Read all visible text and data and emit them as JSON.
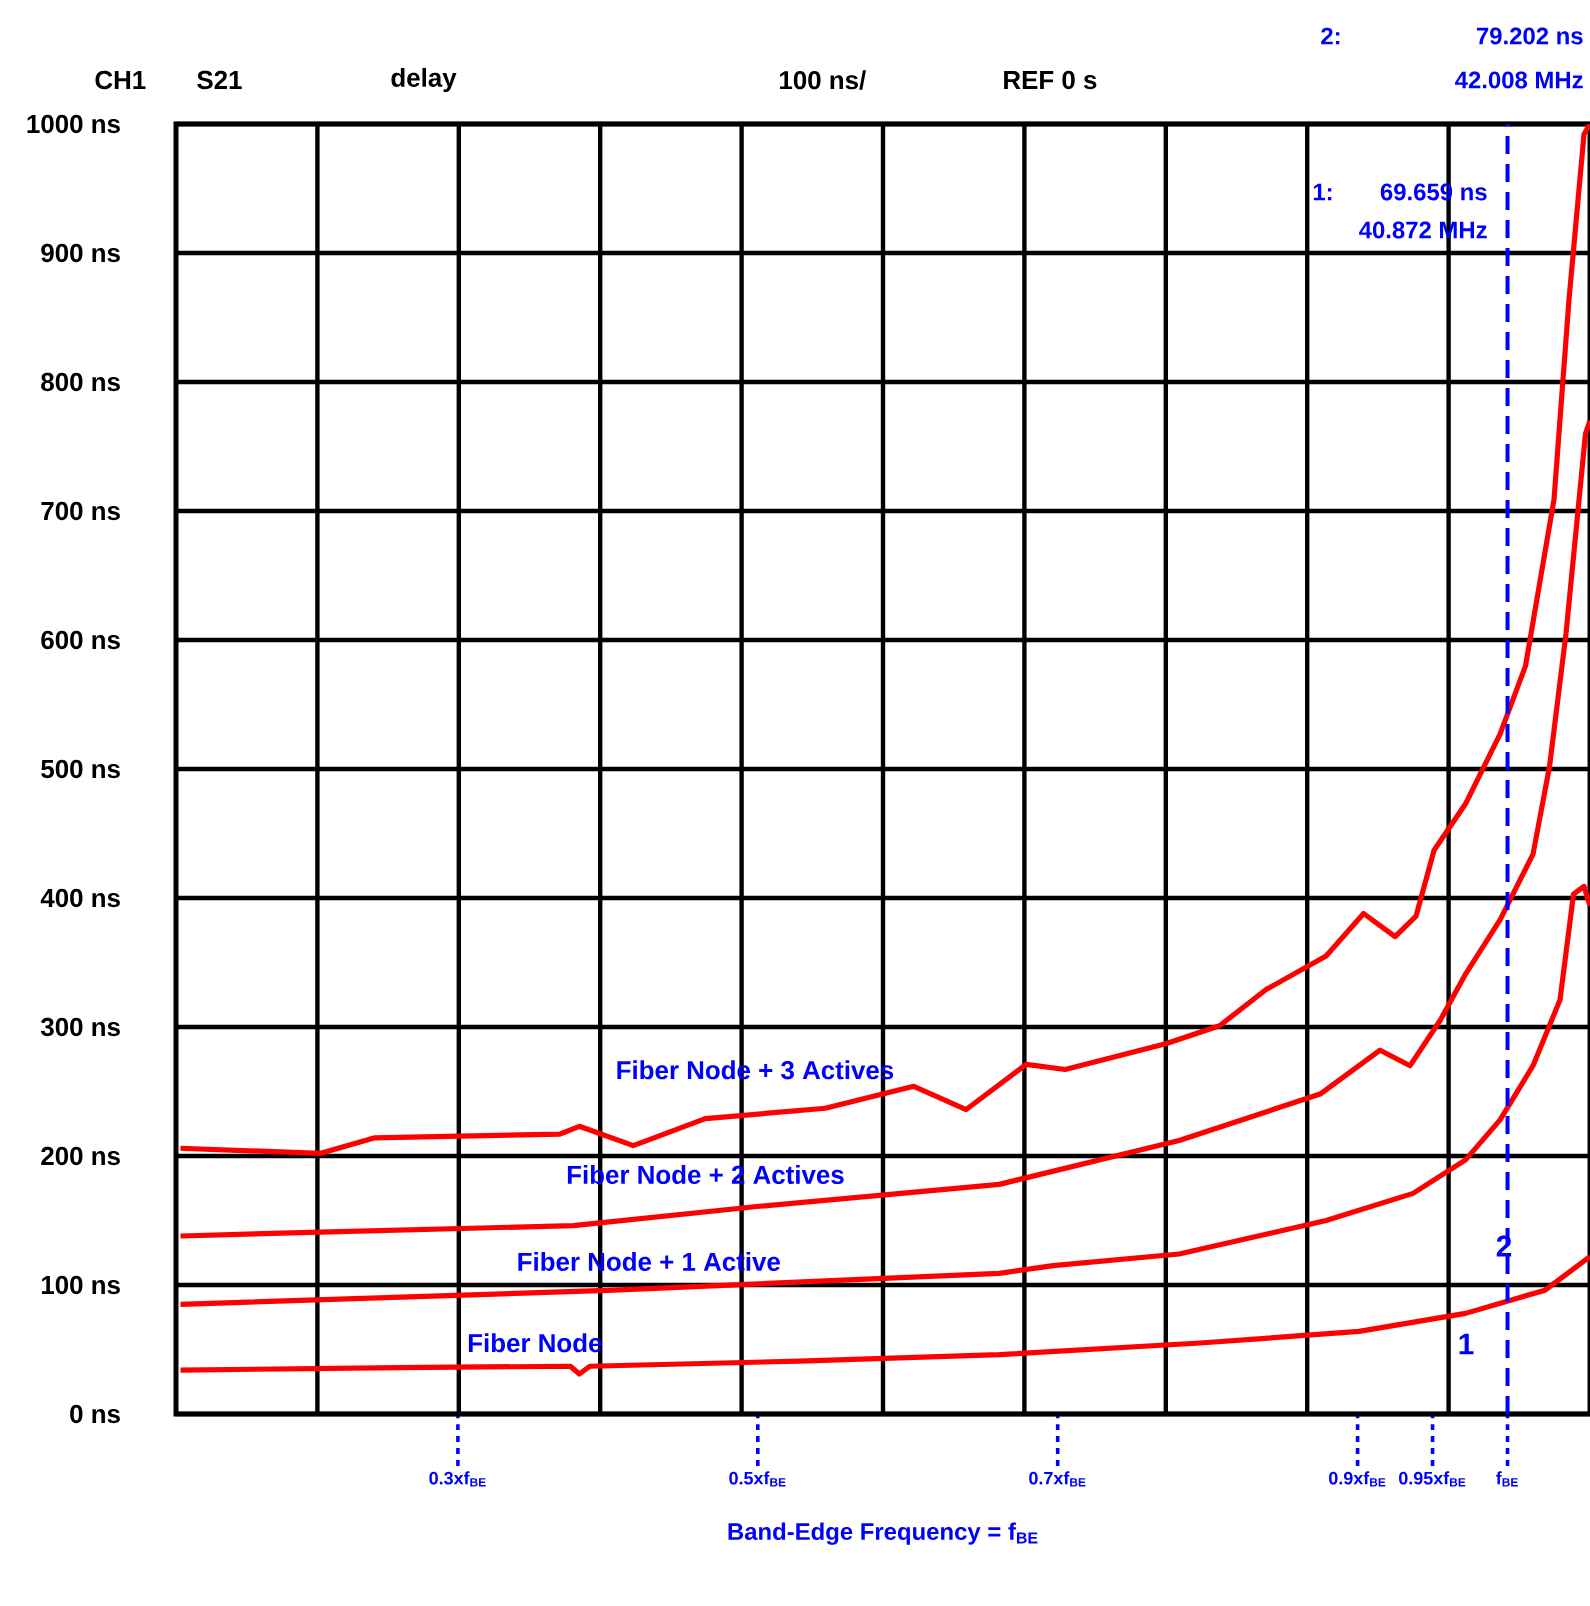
{
  "chart_data": {
    "type": "line",
    "xlabel": "Band-Edge Frequency = f$_{BE}$",
    "xlim": [
      0.112,
      1.055
    ],
    "ylim": [
      0,
      1000
    ],
    "xticks": [
      {
        "value": 0.3,
        "label": "0.3xf$_{BE}$"
      },
      {
        "value": 0.5,
        "label": "0.5xf$_{BE}$"
      },
      {
        "value": 0.7,
        "label": "0.7xf$_{BE}$"
      },
      {
        "value": 0.9,
        "label": "0.9xf$_{BE}$"
      },
      {
        "value": 0.95,
        "label": "0.95xf$_{BE}$"
      },
      {
        "value": 1.0,
        "label": "f$_{BE}$"
      }
    ],
    "yticks": [
      {
        "value": 0,
        "label": "0 ns"
      },
      {
        "value": 100,
        "label": "100 ns"
      },
      {
        "value": 200,
        "label": "200 ns"
      },
      {
        "value": 300,
        "label": "300 ns"
      },
      {
        "value": 400,
        "label": "400 ns"
      },
      {
        "value": 500,
        "label": "500 ns"
      },
      {
        "value": 600,
        "label": "600 ns"
      },
      {
        "value": 700,
        "label": "700 ns"
      },
      {
        "value": 800,
        "label": "800 ns"
      },
      {
        "value": 900,
        "label": "900 ns"
      },
      {
        "value": 1000,
        "label": "1000 ns"
      }
    ],
    "grid": true,
    "legend": false,
    "series": [
      {
        "name": "Fiber Node",
        "color": "#ff0000",
        "x": [
          0.115,
          0.261,
          0.375,
          0.381,
          0.388,
          0.528,
          0.661,
          0.795,
          0.901,
          0.972,
          1.025,
          1.055
        ],
        "values": [
          34,
          36,
          37,
          31,
          37,
          41,
          46,
          55,
          64,
          78,
          96,
          122
        ]
      },
      {
        "name": "Fiber Node + 1 Active",
        "color": "#ff0000",
        "x": [
          0.115,
          0.404,
          0.661,
          0.697,
          0.781,
          0.879,
          0.937,
          0.972,
          0.995,
          1.017,
          1.035,
          1.044,
          1.051,
          1.055
        ],
        "values": [
          85,
          96,
          109,
          115,
          124,
          150,
          171,
          197,
          228,
          270,
          321,
          403,
          409,
          394
        ]
      },
      {
        "name": "Fiber Node + 2 Actives",
        "color": "#ff0000",
        "x": [
          0.115,
          0.208,
          0.377,
          0.501,
          0.661,
          0.781,
          0.875,
          0.915,
          0.935,
          0.955,
          0.972,
          0.995,
          1.017,
          1.028,
          1.039,
          1.052,
          1.055
        ],
        "values": [
          138,
          141,
          146,
          161,
          178,
          212,
          248,
          282,
          270,
          305,
          341,
          383,
          434,
          502,
          605,
          760,
          770
        ]
      },
      {
        "name": "Fiber Node + 3 Actives",
        "color": "#ff0000",
        "x": [
          0.115,
          0.208,
          0.244,
          0.368,
          0.381,
          0.417,
          0.465,
          0.545,
          0.604,
          0.639,
          0.679,
          0.705,
          0.772,
          0.808,
          0.839,
          0.879,
          0.904,
          0.925,
          0.939,
          0.951,
          0.972,
          0.995,
          1.012,
          1.031,
          1.041,
          1.051,
          1.055
        ],
        "values": [
          206,
          202,
          214,
          217,
          223,
          208,
          229,
          237,
          254,
          236,
          271,
          267,
          287,
          301,
          329,
          355,
          388,
          370,
          386,
          437,
          473,
          527,
          580,
          709,
          864,
          992,
          1000
        ]
      }
    ],
    "ref_lines": [
      {
        "axis": "x",
        "value": 1.0,
        "color": "#0000ff",
        "line_style": "dashed"
      }
    ],
    "annotations": [
      "CH1",
      "S21",
      "delay",
      "100 ns/",
      "REF 0 s",
      "2:",
      "79.202 ns",
      "42.008 MHz",
      "1:",
      "69.659 ns",
      "40.872 MHz",
      "1",
      "2"
    ]
  }
}
